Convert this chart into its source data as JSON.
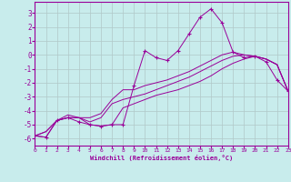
{
  "xlabel": "Windchill (Refroidissement éolien,°C)",
  "background_color": "#c8ecec",
  "grid_color": "#b0c8c8",
  "line_color": "#990099",
  "xlim": [
    0,
    23
  ],
  "ylim": [
    -6.5,
    3.8
  ],
  "xticks": [
    0,
    1,
    2,
    3,
    4,
    5,
    6,
    7,
    8,
    9,
    10,
    11,
    12,
    13,
    14,
    15,
    16,
    17,
    18,
    19,
    20,
    21,
    22,
    23
  ],
  "yticks": [
    -6,
    -5,
    -4,
    -3,
    -2,
    -1,
    0,
    1,
    2,
    3
  ],
  "hours": [
    0,
    1,
    2,
    3,
    4,
    5,
    6,
    7,
    8,
    9,
    10,
    11,
    12,
    13,
    14,
    15,
    16,
    17,
    18,
    19,
    20,
    21,
    22,
    23
  ],
  "main_line": [
    -5.8,
    -5.9,
    -4.7,
    -4.5,
    -4.8,
    -5.0,
    -5.1,
    -5.0,
    -5.0,
    -2.2,
    0.3,
    -0.2,
    -0.4,
    0.3,
    1.5,
    2.7,
    3.3,
    2.3,
    0.2,
    -0.2,
    -0.1,
    -0.5,
    -1.8,
    -2.6
  ],
  "line2": [
    -5.8,
    -5.9,
    -4.7,
    -4.5,
    -4.5,
    -4.5,
    -4.2,
    -3.2,
    -2.5,
    -2.5,
    -2.2,
    -2.0,
    -1.8,
    -1.5,
    -1.2,
    -0.8,
    -0.4,
    0.0,
    0.2,
    0.0,
    -0.1,
    -0.3,
    -0.7,
    -2.6
  ],
  "line3": [
    -5.8,
    -5.5,
    -4.7,
    -4.5,
    -4.5,
    -4.8,
    -4.5,
    -3.5,
    -3.2,
    -3.0,
    -2.8,
    -2.5,
    -2.2,
    -1.9,
    -1.6,
    -1.2,
    -0.8,
    -0.4,
    -0.1,
    0.0,
    -0.1,
    -0.3,
    -0.7,
    -2.6
  ],
  "line4": [
    -5.8,
    -5.5,
    -4.7,
    -4.3,
    -4.5,
    -5.0,
    -5.1,
    -5.0,
    -3.8,
    -3.5,
    -3.2,
    -2.9,
    -2.7,
    -2.5,
    -2.2,
    -1.9,
    -1.5,
    -1.0,
    -0.6,
    -0.3,
    -0.1,
    -0.3,
    -0.7,
    -2.6
  ]
}
